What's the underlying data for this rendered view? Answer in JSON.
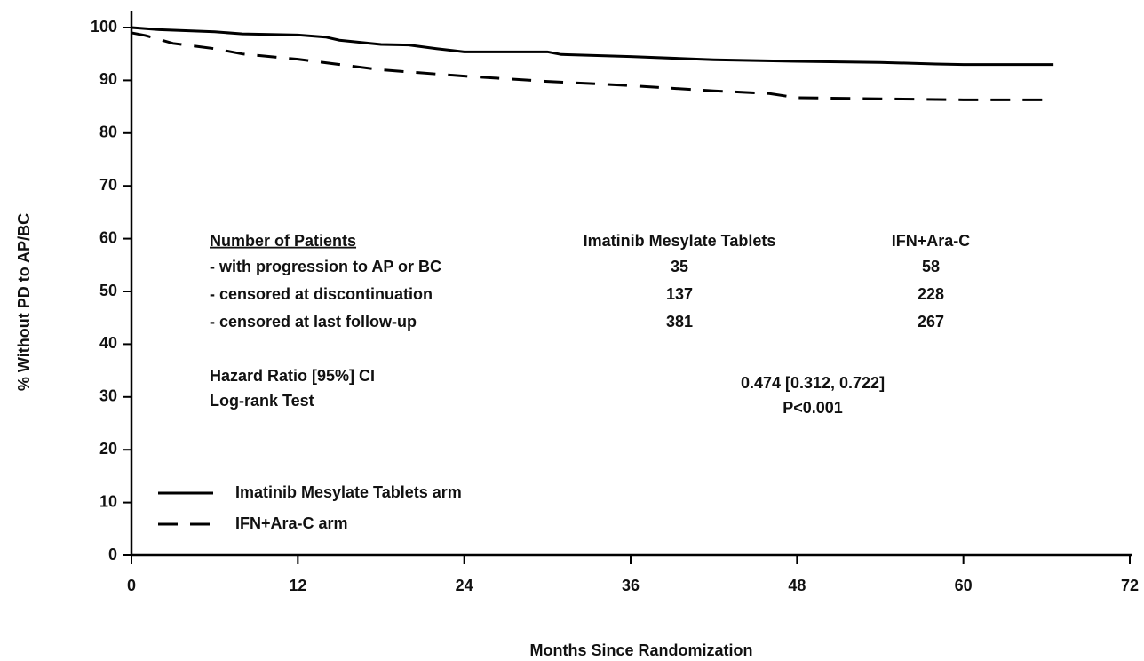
{
  "chart_data": {
    "type": "line",
    "xlabel": "Months Since Randomization",
    "ylabel": "% Without PD to AP/BC",
    "xlim": [
      0,
      72
    ],
    "xticks": [
      0,
      12,
      24,
      36,
      48,
      60,
      72
    ],
    "ylim": [
      0,
      100
    ],
    "yticks": [
      0,
      10,
      20,
      30,
      40,
      50,
      60,
      70,
      80,
      90,
      100
    ],
    "legend": "lower left",
    "series": [
      {
        "name": "Imatinib Mesylate Tablets arm",
        "color": "#000000",
        "dash": false,
        "x": [
          0,
          2,
          6,
          8,
          12,
          14,
          15,
          18,
          20,
          22,
          24,
          30,
          31,
          36,
          42,
          48,
          54,
          58,
          60,
          66.5
        ],
        "values": [
          100,
          99.6,
          99.2,
          98.8,
          98.6,
          98.2,
          97.6,
          96.8,
          96.7,
          96,
          95.4,
          95.4,
          94.9,
          94.5,
          93.9,
          93.6,
          93.4,
          93.1,
          93,
          93
        ]
      },
      {
        "name": "IFN+Ara-C arm",
        "color": "#000000",
        "dash": true,
        "x": [
          0,
          1,
          3,
          6,
          8,
          12,
          18,
          24,
          30,
          36,
          42,
          46,
          48,
          54,
          60,
          66.5
        ],
        "values": [
          99,
          98.5,
          97,
          96,
          95,
          94,
          92,
          90.8,
          89.8,
          89,
          88,
          87.5,
          86.7,
          86.5,
          86.3,
          86.3
        ]
      }
    ],
    "table": {
      "header": [
        "Number of Patients",
        "Imatinib Mesylate Tablets",
        "IFN+Ara-C"
      ],
      "rows": [
        [
          "- with progression to AP or BC",
          35,
          58
        ],
        [
          "- censored at discontinuation",
          137,
          228
        ],
        [
          "- censored at last follow-up",
          381,
          267
        ]
      ]
    },
    "stats": {
      "labels": [
        "Hazard Ratio [95%] CI",
        "Log-rank Test"
      ],
      "values": [
        "0.474 [0.312, 0.722]",
        "P<0.001"
      ]
    }
  }
}
